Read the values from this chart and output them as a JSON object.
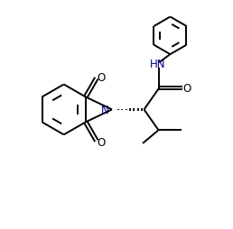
{
  "background_color": "#ffffff",
  "line_color": "#000000",
  "text_color": "#000000",
  "N_color": "#00008b",
  "line_width": 1.4,
  "fig_width": 2.58,
  "fig_height": 2.55,
  "dpi": 100,
  "xlim": [
    0,
    10
  ],
  "ylim": [
    0,
    10
  ]
}
